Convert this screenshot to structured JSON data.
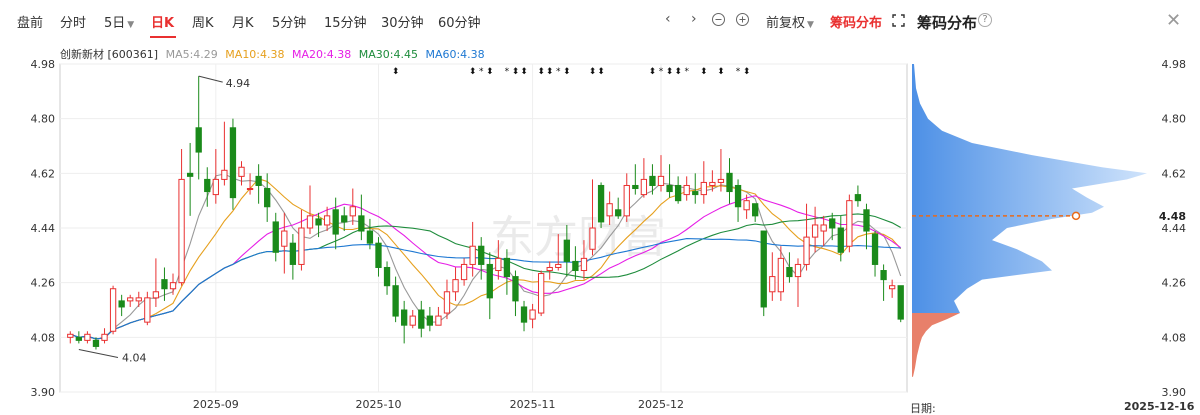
{
  "tabs": [
    {
      "label": "盘前",
      "active": false
    },
    {
      "label": "分时",
      "active": false
    },
    {
      "label": "5日",
      "active": false,
      "dropdown": true
    },
    {
      "label": "日K",
      "active": true
    },
    {
      "label": "周K",
      "active": false
    },
    {
      "label": "月K",
      "active": false
    },
    {
      "label": "5分钟",
      "active": false
    },
    {
      "label": "15分钟",
      "active": false
    },
    {
      "label": "30分钟",
      "active": false
    },
    {
      "label": "60分钟",
      "active": false
    }
  ],
  "toolbar": {
    "prev_icon": "chevron-left-icon",
    "next_icon": "chevron-right-icon",
    "zoom_out_icon": "zoom-out-icon",
    "zoom_in_icon": "zoom-in-icon",
    "adjust_label": "前复权",
    "chip_toggle_label": "筹码分布",
    "expand_icon": "expand-icon"
  },
  "chip_panel": {
    "title": "筹码分布",
    "help_icon": "question-icon",
    "close_icon": "close-icon",
    "current_price": "4.48",
    "date_label": "日期:",
    "date_value": "2025-12-16",
    "ticks": [
      "4.98",
      "4.80",
      "4.62",
      "4.44",
      "4.26",
      "4.08",
      "3.90"
    ]
  },
  "stock": {
    "name": "创新新材 [600361]",
    "ma": [
      {
        "label": "MA5:4.29",
        "color": "#999999"
      },
      {
        "label": "MA10:4.38",
        "color": "#e6a01e"
      },
      {
        "label": "MA20:4.38",
        "color": "#e61ee6"
      },
      {
        "label": "MA30:4.45",
        "color": "#1e8c3c"
      },
      {
        "label": "MA60:4.38",
        "color": "#1e78d2"
      }
    ]
  },
  "colors": {
    "up": "#e93030",
    "down": "#1a8a1a",
    "chip_profit": "#e8806a",
    "chip_loss": "#5aa0f0"
  },
  "chart_data": {
    "type": "candlestick",
    "y_ticks": [
      "4.98",
      "4.80",
      "4.62",
      "4.44",
      "4.26",
      "4.08",
      "3.90"
    ],
    "ylim": [
      3.9,
      4.98
    ],
    "x_labels": [
      "2025-09",
      "2025-10",
      "2025-11",
      "2025-12"
    ],
    "annotations": [
      {
        "label": "4.94",
        "value": 4.94
      },
      {
        "label": "4.04",
        "value": 4.04
      }
    ],
    "watermark": "东方财富",
    "candles": [
      [
        4.08,
        4.09,
        4.1,
        4.06
      ],
      [
        4.08,
        4.07,
        4.1,
        4.06
      ],
      [
        4.07,
        4.09,
        4.1,
        4.06
      ],
      [
        4.07,
        4.05,
        4.08,
        4.04
      ],
      [
        4.07,
        4.09,
        4.11,
        4.06
      ],
      [
        4.1,
        4.24,
        4.25,
        4.09
      ],
      [
        4.2,
        4.18,
        4.22,
        4.15
      ],
      [
        4.2,
        4.21,
        4.22,
        4.18
      ],
      [
        4.2,
        4.21,
        4.23,
        4.18
      ],
      [
        4.13,
        4.21,
        4.23,
        4.12
      ],
      [
        4.21,
        4.23,
        4.34,
        4.18
      ],
      [
        4.27,
        4.24,
        4.31,
        4.2
      ],
      [
        4.24,
        4.26,
        4.29,
        4.22
      ],
      [
        4.26,
        4.6,
        4.7,
        4.25
      ],
      [
        4.62,
        4.61,
        4.72,
        4.48
      ],
      [
        4.77,
        4.69,
        4.94,
        4.6
      ],
      [
        4.6,
        4.56,
        4.64,
        4.51
      ],
      [
        4.55,
        4.6,
        4.7,
        4.52
      ],
      [
        4.6,
        4.63,
        4.79,
        4.58
      ],
      [
        4.77,
        4.54,
        4.8,
        4.5
      ],
      [
        4.61,
        4.64,
        4.66,
        4.58
      ],
      [
        4.57,
        4.57,
        4.62,
        4.55
      ],
      [
        4.61,
        4.58,
        4.65,
        4.52
      ],
      [
        4.57,
        4.51,
        4.62,
        4.46
      ],
      [
        4.46,
        4.36,
        4.49,
        4.33
      ],
      [
        4.38,
        4.43,
        4.49,
        4.29
      ],
      [
        4.39,
        4.32,
        4.42,
        4.27
      ],
      [
        4.32,
        4.44,
        4.5,
        4.3
      ],
      [
        4.44,
        4.48,
        4.58,
        4.42
      ],
      [
        4.47,
        4.45,
        4.49,
        4.41
      ],
      [
        4.45,
        4.48,
        4.51,
        4.43
      ],
      [
        4.5,
        4.42,
        4.54,
        4.37
      ],
      [
        4.48,
        4.46,
        4.51,
        4.43
      ],
      [
        4.48,
        4.51,
        4.57,
        4.45
      ],
      [
        4.48,
        4.43,
        4.55,
        4.4
      ],
      [
        4.43,
        4.39,
        4.47,
        4.37
      ],
      [
        4.39,
        4.31,
        4.41,
        4.28
      ],
      [
        4.31,
        4.25,
        4.33,
        4.22
      ],
      [
        4.25,
        4.15,
        4.28,
        4.13
      ],
      [
        4.17,
        4.12,
        4.2,
        4.06
      ],
      [
        4.12,
        4.15,
        4.17,
        4.11
      ],
      [
        4.17,
        4.11,
        4.2,
        4.08
      ],
      [
        4.15,
        4.12,
        4.18,
        4.1
      ],
      [
        4.12,
        4.15,
        4.18,
        4.12
      ],
      [
        4.16,
        4.23,
        4.27,
        4.14
      ],
      [
        4.23,
        4.27,
        4.31,
        4.2
      ],
      [
        4.27,
        4.32,
        4.34,
        4.25
      ],
      [
        4.32,
        4.38,
        4.46,
        4.28
      ],
      [
        4.38,
        4.32,
        4.41,
        4.27
      ],
      [
        4.32,
        4.21,
        4.36,
        4.14
      ],
      [
        4.3,
        4.34,
        4.4,
        4.27
      ],
      [
        4.34,
        4.28,
        4.37,
        4.22
      ],
      [
        4.28,
        4.2,
        4.3,
        4.15
      ],
      [
        4.18,
        4.13,
        4.2,
        4.1
      ],
      [
        4.14,
        4.17,
        4.19,
        4.11
      ],
      [
        4.16,
        4.29,
        4.3,
        4.15
      ],
      [
        4.3,
        4.31,
        4.33,
        4.27
      ],
      [
        4.31,
        4.32,
        4.42,
        4.3
      ],
      [
        4.4,
        4.33,
        4.45,
        4.28
      ],
      [
        4.33,
        4.3,
        4.38,
        4.27
      ],
      [
        4.3,
        4.34,
        4.4,
        4.27
      ],
      [
        4.37,
        4.44,
        4.6,
        4.35
      ],
      [
        4.58,
        4.46,
        4.59,
        4.44
      ],
      [
        4.48,
        4.52,
        4.56,
        4.45
      ],
      [
        4.5,
        4.48,
        4.54,
        4.47
      ],
      [
        4.48,
        4.58,
        4.62,
        4.46
      ],
      [
        4.58,
        4.57,
        4.65,
        4.55
      ],
      [
        4.55,
        4.6,
        4.67,
        4.54
      ],
      [
        4.61,
        4.58,
        4.65,
        4.55
      ],
      [
        4.58,
        4.61,
        4.68,
        4.56
      ],
      [
        4.58,
        4.56,
        4.65,
        4.54
      ],
      [
        4.58,
        4.53,
        4.61,
        4.52
      ],
      [
        4.55,
        4.58,
        4.61,
        4.53
      ],
      [
        4.56,
        4.55,
        4.62,
        4.52
      ],
      [
        4.55,
        4.59,
        4.66,
        4.52
      ],
      [
        4.58,
        4.59,
        4.63,
        4.56
      ],
      [
        4.59,
        4.6,
        4.7,
        4.56
      ],
      [
        4.62,
        4.56,
        4.67,
        4.52
      ],
      [
        4.58,
        4.51,
        4.6,
        4.46
      ],
      [
        4.5,
        4.53,
        4.55,
        4.47
      ],
      [
        4.52,
        4.48,
        4.52,
        4.46
      ],
      [
        4.43,
        4.18,
        4.43,
        4.15
      ],
      [
        4.23,
        4.28,
        4.36,
        4.2
      ],
      [
        4.23,
        4.34,
        4.38,
        4.2
      ],
      [
        4.31,
        4.28,
        4.36,
        4.26
      ],
      [
        4.28,
        4.32,
        4.34,
        4.18
      ],
      [
        4.32,
        4.41,
        4.52,
        4.3
      ],
      [
        4.41,
        4.45,
        4.51,
        4.36
      ],
      [
        4.43,
        4.45,
        4.48,
        4.38
      ],
      [
        4.47,
        4.44,
        4.49,
        4.4
      ],
      [
        4.44,
        4.36,
        4.48,
        4.33
      ],
      [
        4.38,
        4.53,
        4.55,
        4.36
      ],
      [
        4.55,
        4.53,
        4.58,
        4.51
      ],
      [
        4.5,
        4.43,
        4.52,
        4.37
      ],
      [
        4.42,
        4.32,
        4.43,
        4.28
      ],
      [
        4.3,
        4.27,
        4.32,
        4.2
      ],
      [
        4.24,
        4.25,
        4.27,
        4.21
      ],
      [
        4.25,
        4.14,
        4.25,
        4.13
      ]
    ]
  }
}
